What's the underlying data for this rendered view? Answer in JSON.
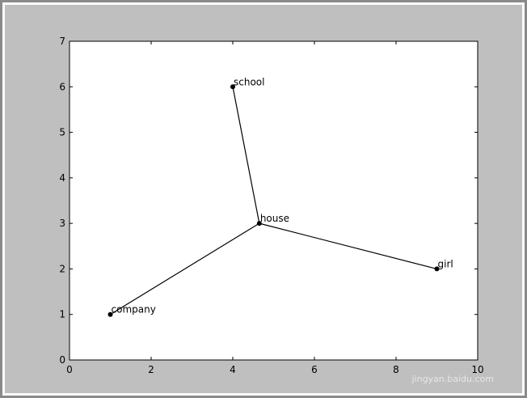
{
  "chart_data": {
    "type": "line",
    "title": "",
    "xlabel": "",
    "ylabel": "",
    "xlim": [
      0,
      10
    ],
    "ylim": [
      0,
      7
    ],
    "xticks": [
      0,
      2,
      4,
      6,
      8,
      10
    ],
    "yticks": [
      0,
      1,
      2,
      3,
      4,
      5,
      6,
      7
    ],
    "grid": false,
    "points": [
      {
        "label": "house",
        "x": 4.65,
        "y": 3.0
      },
      {
        "label": "school",
        "x": 4.0,
        "y": 6.0
      },
      {
        "label": "girl",
        "x": 9.0,
        "y": 2.0
      },
      {
        "label": "company",
        "x": 1.0,
        "y": 1.0
      }
    ],
    "edges": [
      [
        "house",
        "school"
      ],
      [
        "house",
        "girl"
      ],
      [
        "house",
        "company"
      ]
    ],
    "colors": {
      "figure_bg": "#bfbfbf",
      "axes_bg": "#ffffff",
      "line": "#000000",
      "marker": "#000000"
    }
  },
  "watermark": "jingyan.baidu.com"
}
